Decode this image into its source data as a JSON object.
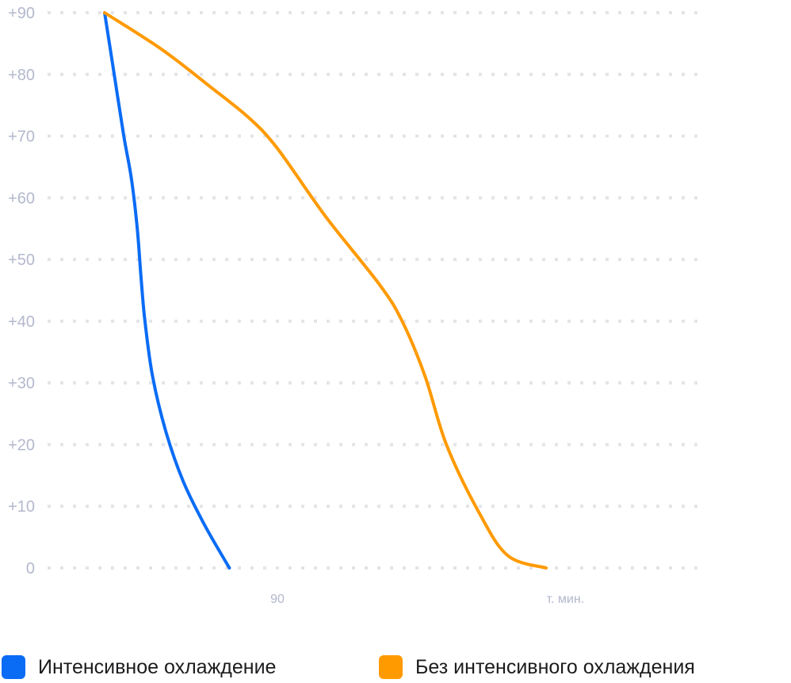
{
  "chart_data": {
    "type": "line",
    "y_ticks": [
      "+90",
      "+80",
      "+70",
      "+60",
      "+50",
      "+40",
      "+30",
      "+20",
      "+10",
      "0"
    ],
    "y_tick_values": [
      90,
      80,
      70,
      60,
      50,
      40,
      30,
      20,
      10,
      0
    ],
    "x_ticks": [
      {
        "label": "90",
        "value": 90
      },
      {
        "label": "т. мин.",
        "value": 240
      }
    ],
    "xlim": [
      0,
      240
    ],
    "ylim": [
      0,
      90
    ],
    "grid": true,
    "legend_position": "bottom",
    "series": [
      {
        "name": "Интенсивное охлаждение",
        "color": "#0a6cf5",
        "points": [
          [
            0,
            90
          ],
          [
            5,
            80
          ],
          [
            10,
            70
          ],
          [
            14,
            63
          ],
          [
            17,
            55
          ],
          [
            19,
            47
          ],
          [
            21,
            40
          ],
          [
            25,
            31
          ],
          [
            32,
            22
          ],
          [
            41,
            14
          ],
          [
            52,
            7
          ],
          [
            65,
            0
          ]
        ]
      },
      {
        "name": "Без интенсивного охлаждения",
        "color": "#ff9a00",
        "points": [
          [
            0,
            90
          ],
          [
            30,
            84
          ],
          [
            55,
            78
          ],
          [
            75,
            73
          ],
          [
            90,
            68
          ],
          [
            115,
            57
          ],
          [
            143,
            46
          ],
          [
            155,
            40
          ],
          [
            167,
            31
          ],
          [
            178,
            20
          ],
          [
            195,
            9
          ],
          [
            210,
            2
          ],
          [
            230,
            0
          ]
        ]
      }
    ]
  }
}
